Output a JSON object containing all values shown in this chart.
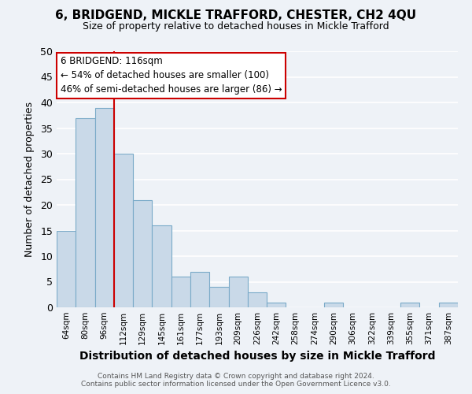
{
  "title": "6, BRIDGEND, MICKLE TRAFFORD, CHESTER, CH2 4QU",
  "subtitle": "Size of property relative to detached houses in Mickle Trafford",
  "xlabel": "Distribution of detached houses by size in Mickle Trafford",
  "ylabel": "Number of detached properties",
  "bin_labels": [
    "64sqm",
    "80sqm",
    "96sqm",
    "112sqm",
    "129sqm",
    "145sqm",
    "161sqm",
    "177sqm",
    "193sqm",
    "209sqm",
    "226sqm",
    "242sqm",
    "258sqm",
    "274sqm",
    "290sqm",
    "306sqm",
    "322sqm",
    "339sqm",
    "355sqm",
    "371sqm",
    "387sqm"
  ],
  "bar_values": [
    15,
    37,
    39,
    30,
    21,
    16,
    6,
    7,
    4,
    6,
    3,
    1,
    0,
    0,
    1,
    0,
    0,
    0,
    1,
    0,
    1
  ],
  "bar_color": "#c9d9e8",
  "bar_edgecolor": "#7aaac8",
  "vline_x_index": 3,
  "vline_color": "#cc0000",
  "annotation_title": "6 BRIDGEND: 116sqm",
  "annotation_line1": "← 54% of detached houses are smaller (100)",
  "annotation_line2": "46% of semi-detached houses are larger (86) →",
  "annotation_box_color": "#cc0000",
  "ylim": [
    0,
    50
  ],
  "yticks": [
    0,
    5,
    10,
    15,
    20,
    25,
    30,
    35,
    40,
    45,
    50
  ],
  "footer1": "Contains HM Land Registry data © Crown copyright and database right 2024.",
  "footer2": "Contains public sector information licensed under the Open Government Licence v3.0.",
  "background_color": "#eef2f7",
  "grid_color": "#ffffff"
}
